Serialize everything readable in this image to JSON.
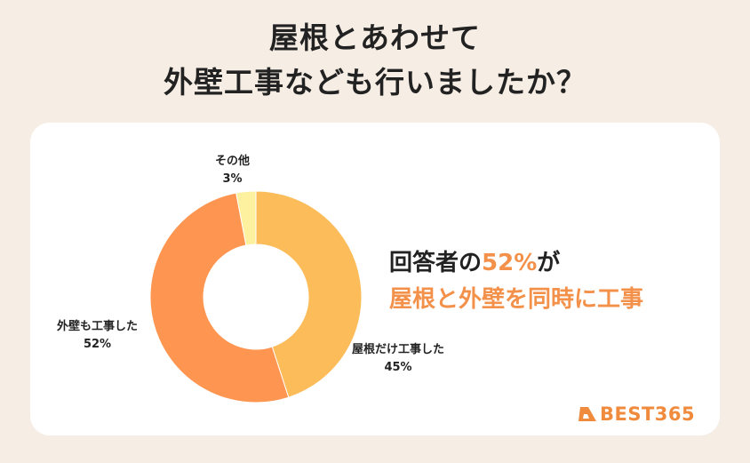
{
  "title_line1": "屋根とあわせて",
  "title_line2": "外壁工事なども行いましたか？",
  "headline": {
    "prefix": "回答者の",
    "highlight_pct": "52%",
    "suffix": "が",
    "line2": "屋根と外壁を同時に工事"
  },
  "brand": "BEST365",
  "colors": {
    "roof_only": "#fcbc5a",
    "with_wall": "#fe9550",
    "other": "#fdf1a0",
    "accent": "#f3914a"
  },
  "chart_data": {
    "type": "pie",
    "donut": true,
    "slices": [
      {
        "label": "屋根だけ工事した",
        "value": 45,
        "value_label": "45%"
      },
      {
        "label": "外壁も工事した",
        "value": 52,
        "value_label": "52%"
      },
      {
        "label": "その他",
        "value": 3,
        "value_label": "3%"
      }
    ]
  }
}
